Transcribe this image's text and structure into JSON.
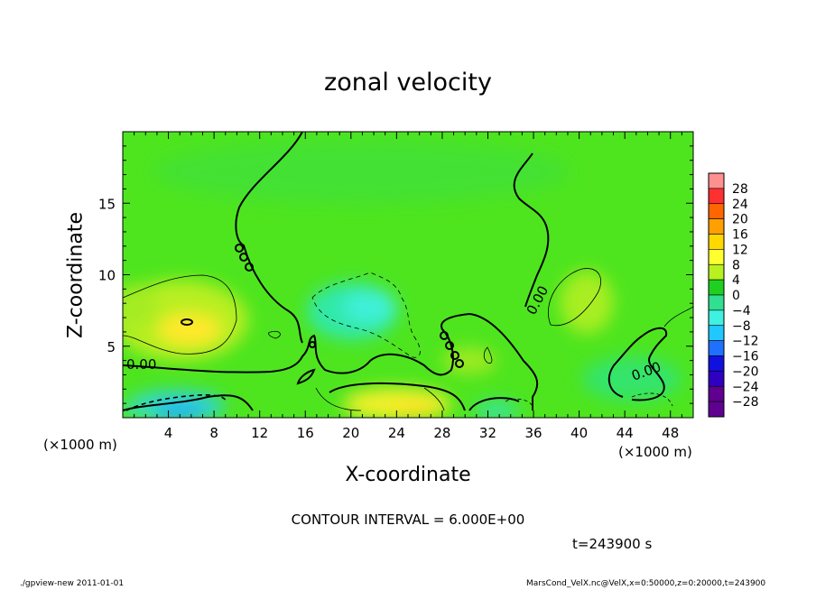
{
  "chart_data": {
    "type": "heatmap",
    "title": "zonal velocity",
    "xlabel": "X-coordinate",
    "ylabel": "Z-coordinate",
    "x_unit_label": "(×1000 m)",
    "xlim": [
      0,
      50
    ],
    "ylim": [
      0,
      20
    ],
    "x_ticks": [
      "4",
      "8",
      "12",
      "16",
      "20",
      "24",
      "28",
      "32",
      "36",
      "40",
      "44",
      "48"
    ],
    "y_ticks": [
      "5",
      "10",
      "15"
    ],
    "contour_labels": [
      "0.00",
      "0.00",
      "0.00"
    ],
    "colorbar": {
      "levels": [
        "28",
        "24",
        "20",
        "16",
        "12",
        "8",
        "4",
        "0",
        "−4",
        "−8",
        "−12",
        "−16",
        "−20",
        "−24",
        "−28"
      ],
      "colors": [
        "#ff9090",
        "#ff3030",
        "#ff6600",
        "#ffa000",
        "#ffd800",
        "#ffff30",
        "#b8f020",
        "#20d020",
        "#30e090",
        "#40f0e0",
        "#20c8ff",
        "#2070ff",
        "#1010e0",
        "#3000c0",
        "#600090"
      ]
    },
    "contour_interval_text": "CONTOUR INTERVAL = 6.000E+00",
    "time_text": "t=243900  s"
  },
  "footer": {
    "left": "./gpview-new   2011-01-01",
    "right": "MarsCond_VelX.nc@VelX,x=0:50000,z=0:20000,t=243900"
  }
}
